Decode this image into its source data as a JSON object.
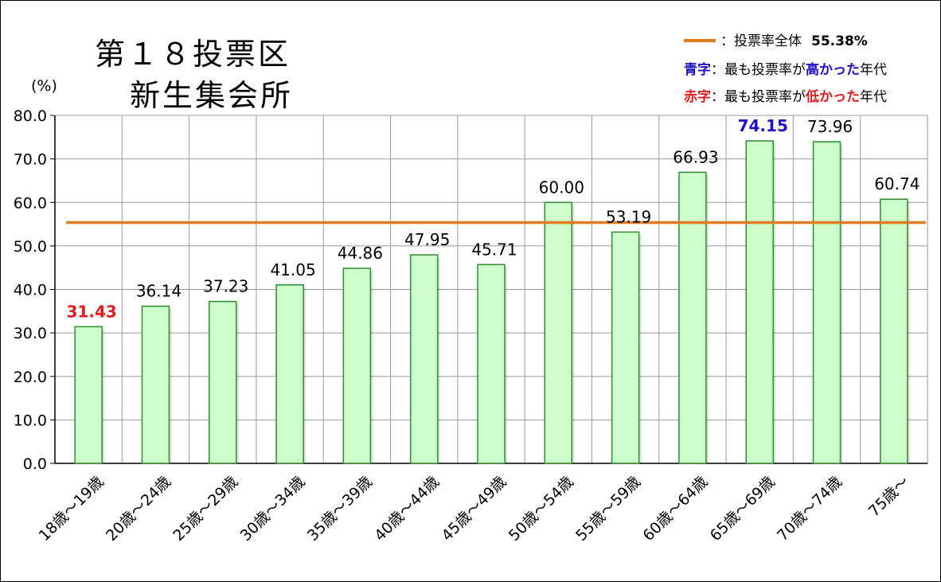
{
  "title": {
    "line1": "第１８投票区",
    "line2": "新生集会所"
  },
  "legend": {
    "line_prefix": "：投票率全体",
    "line_value": "55.38%",
    "blue_key": "青字",
    "blue_sep": "：最も投票率が",
    "blue_em": "高かった",
    "blue_suffix": "年代",
    "red_key": "赤字",
    "red_sep": "：最も投票率が",
    "red_em": "低かった",
    "red_suffix": "年代"
  },
  "chart_data": {
    "type": "bar",
    "ylabel": "(%)",
    "ylim": [
      0,
      80
    ],
    "ytick_labels": [
      "0.0",
      "10.0",
      "20.0",
      "30.0",
      "40.0",
      "50.0",
      "60.0",
      "70.0",
      "80.0"
    ],
    "grid": true,
    "categories": [
      "18歳～19歳",
      "20歳～24歳",
      "25歳～29歳",
      "30歳～34歳",
      "35歳～39歳",
      "40歳～44歳",
      "45歳～49歳",
      "50歳～54歳",
      "55歳～59歳",
      "60歳～64歳",
      "65歳～69歳",
      "70歳～74歳",
      "75歳～"
    ],
    "values": [
      31.43,
      36.14,
      37.23,
      41.05,
      44.86,
      47.95,
      45.71,
      60.0,
      53.19,
      66.93,
      74.15,
      73.96,
      60.74
    ],
    "value_labels": [
      "31.43",
      "36.14",
      "37.23",
      "41.05",
      "44.86",
      "47.95",
      "45.71",
      "60.00",
      "53.19",
      "66.93",
      "74.15",
      "73.96",
      "60.74"
    ],
    "highest_index": 10,
    "lowest_index": 0,
    "reference_line": {
      "value": 55.38
    },
    "colors": {
      "bar_fill": "#CCFFCC",
      "bar_stroke": "#2E8B2E",
      "reference_line": "#E07B20",
      "highest_label": "#1F10C8",
      "lowest_label": "#E31B1B",
      "grid": "#9A9A9A"
    }
  }
}
